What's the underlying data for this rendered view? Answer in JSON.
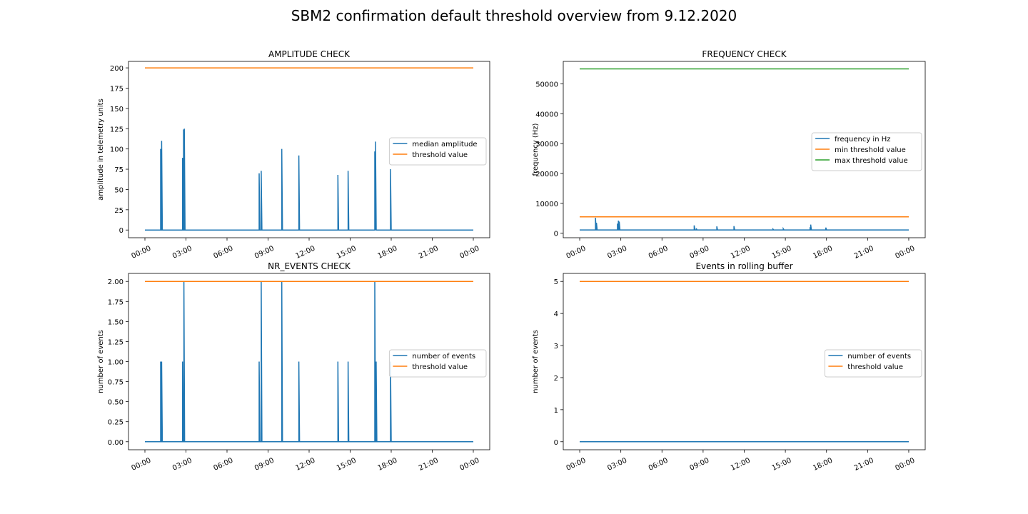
{
  "figure_title": "SBM2 confirmation default threshold overview from 9.12.2020",
  "x_ticks": [
    "00:00",
    "03:00",
    "06:00",
    "09:00",
    "12:00",
    "15:00",
    "18:00",
    "21:00",
    "00:00"
  ],
  "colors": {
    "blue": "#1f77b4",
    "orange": "#ff7f0e",
    "green": "#2ca02c"
  },
  "chart_data": [
    {
      "type": "line",
      "title": "AMPLITUDE CHECK",
      "xlabel": "",
      "ylabel": "amplitude in telemetry units",
      "x_unit": "hours since 00:00",
      "xlim": [
        -1.2,
        25.2
      ],
      "ylim": [
        -9.5,
        208
      ],
      "yticks": [
        "0",
        "25",
        "50",
        "75",
        "100",
        "125",
        "150",
        "175",
        "200"
      ],
      "ytick_values": [
        0,
        25,
        50,
        75,
        100,
        125,
        150,
        175,
        200
      ],
      "legend_position": "center-right",
      "grid": false,
      "series": [
        {
          "name": "median amplitude",
          "color": "#1f77b4",
          "kind": "spikes",
          "baseline": 0,
          "spikes": [
            [
              1.15,
              100
            ],
            [
              1.22,
              110
            ],
            [
              2.75,
              89
            ],
            [
              2.82,
              124
            ],
            [
              2.88,
              125
            ],
            [
              8.35,
              70
            ],
            [
              8.5,
              73
            ],
            [
              10.0,
              100
            ],
            [
              11.25,
              92
            ],
            [
              14.1,
              68
            ],
            [
              14.85,
              73
            ],
            [
              16.8,
              97
            ],
            [
              16.85,
              109
            ],
            [
              17.95,
              75
            ]
          ]
        },
        {
          "name": "threshold value",
          "color": "#ff7f0e",
          "kind": "constant",
          "value": 200
        }
      ]
    },
    {
      "type": "line",
      "title": "FREQUENCY CHECK",
      "xlabel": "",
      "ylabel": "frequency (Hz)",
      "x_unit": "hours since 00:00",
      "xlim": [
        -1.2,
        25.2
      ],
      "ylim": [
        -1500,
        57500
      ],
      "yticks": [
        "0",
        "10000",
        "20000",
        "30000",
        "40000",
        "50000"
      ],
      "ytick_values": [
        0,
        10000,
        20000,
        30000,
        40000,
        50000
      ],
      "legend_position": "center-right",
      "grid": false,
      "series": [
        {
          "name": "frequency in Hz",
          "color": "#1f77b4",
          "kind": "spikes",
          "baseline": 1100,
          "spikes": [
            [
              1.15,
              5200
            ],
            [
              1.22,
              3500
            ],
            [
              2.75,
              3200
            ],
            [
              2.82,
              4200
            ],
            [
              2.88,
              3900
            ],
            [
              8.35,
              2600
            ],
            [
              8.5,
              1600
            ],
            [
              10.0,
              2300
            ],
            [
              11.25,
              2400
            ],
            [
              14.1,
              1400
            ],
            [
              14.85,
              1500
            ],
            [
              16.8,
              2000
            ],
            [
              16.85,
              2900
            ],
            [
              17.95,
              1900
            ]
          ]
        },
        {
          "name": "min threshold value",
          "color": "#ff7f0e",
          "kind": "constant",
          "value": 5500
        },
        {
          "name": "max threshold value",
          "color": "#2ca02c",
          "kind": "constant",
          "value": 55000
        }
      ]
    },
    {
      "type": "line",
      "title": "NR_EVENTS CHECK",
      "xlabel": "",
      "ylabel": "number of events",
      "x_unit": "hours since 00:00",
      "xlim": [
        -1.2,
        25.2
      ],
      "ylim": [
        -0.1,
        2.1
      ],
      "yticks": [
        "0.00",
        "0.25",
        "0.50",
        "0.75",
        "1.00",
        "1.25",
        "1.50",
        "1.75",
        "2.00"
      ],
      "ytick_values": [
        0,
        0.25,
        0.5,
        0.75,
        1.0,
        1.25,
        1.5,
        1.75,
        2.0
      ],
      "legend_position": "center-right",
      "grid": false,
      "series": [
        {
          "name": "number of events",
          "color": "#1f77b4",
          "kind": "spikes",
          "baseline": 0,
          "spikes": [
            [
              1.15,
              1
            ],
            [
              1.22,
              1
            ],
            [
              2.75,
              1
            ],
            [
              2.85,
              2
            ],
            [
              8.35,
              1
            ],
            [
              8.5,
              2
            ],
            [
              10.0,
              2
            ],
            [
              11.25,
              1
            ],
            [
              14.1,
              1
            ],
            [
              14.85,
              1
            ],
            [
              16.8,
              2
            ],
            [
              16.9,
              1
            ],
            [
              17.95,
              1
            ]
          ]
        },
        {
          "name": "threshold value",
          "color": "#ff7f0e",
          "kind": "constant",
          "value": 2
        }
      ]
    },
    {
      "type": "line",
      "title": "Events in rolling buffer",
      "xlabel": "",
      "ylabel": "number of events",
      "x_unit": "hours since 00:00",
      "xlim": [
        -1.2,
        25.2
      ],
      "ylim": [
        -0.25,
        5.25
      ],
      "yticks": [
        "0",
        "1",
        "2",
        "3",
        "4",
        "5"
      ],
      "ytick_values": [
        0,
        1,
        2,
        3,
        4,
        5
      ],
      "legend_position": "center-right",
      "grid": false,
      "series": [
        {
          "name": "number of events",
          "color": "#1f77b4",
          "kind": "constant",
          "value": 0
        },
        {
          "name": "threshold value",
          "color": "#ff7f0e",
          "kind": "constant",
          "value": 5
        }
      ]
    }
  ]
}
